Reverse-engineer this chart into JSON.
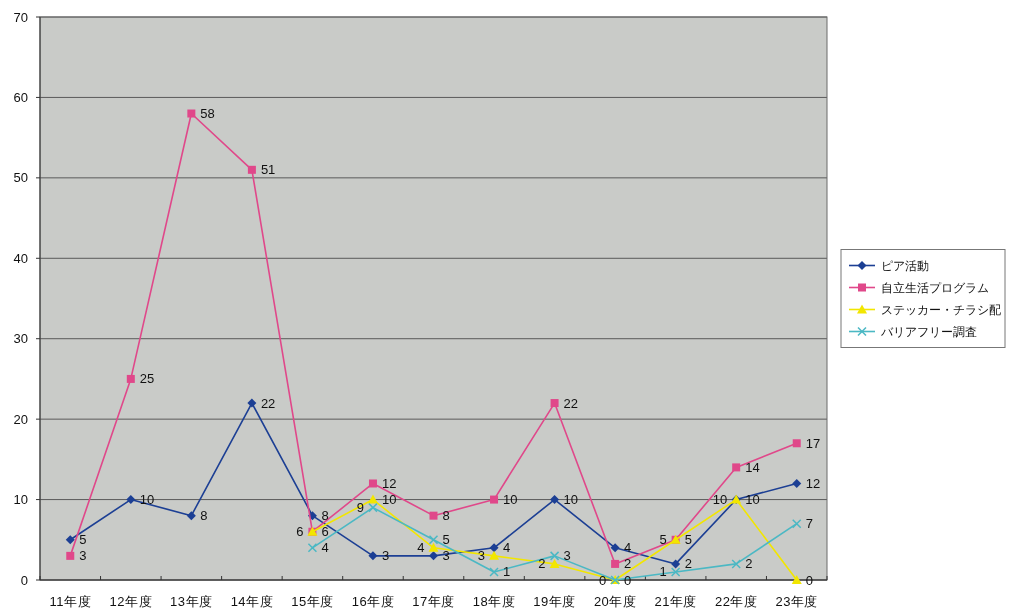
{
  "chart_data": {
    "type": "line",
    "categories": [
      "11年度",
      "12年度",
      "13年度",
      "14年度",
      "15年度",
      "16年度",
      "17年度",
      "18年度",
      "19年度",
      "20年度",
      "21年度",
      "22年度",
      "23年度"
    ],
    "series": [
      {
        "name": "ピア活動",
        "color": "#1c3f94",
        "marker": "diamond",
        "values": [
          5,
          10,
          8,
          22,
          8,
          3,
          3,
          4,
          10,
          4,
          2,
          10,
          12
        ]
      },
      {
        "name": "自立生活プログラム",
        "color": "#e0488a",
        "marker": "square",
        "values": [
          3,
          25,
          58,
          51,
          6,
          12,
          8,
          10,
          22,
          2,
          5,
          14,
          17
        ]
      },
      {
        "name": "ステッカー・チラシ配",
        "color": "#f2e600",
        "marker": "triangle",
        "values": [
          null,
          null,
          null,
          null,
          6,
          10,
          4,
          3,
          2,
          0,
          5,
          10,
          0
        ]
      },
      {
        "name": "バリアフリー調査",
        "color": "#4bb8c4",
        "marker": "cross",
        "values": [
          null,
          null,
          null,
          null,
          4,
          9,
          5,
          1,
          3,
          0,
          1,
          2,
          7
        ]
      }
    ],
    "ylim": [
      0,
      70
    ],
    "yticks": [
      0,
      10,
      20,
      30,
      40,
      50,
      60,
      70
    ],
    "grid": "y",
    "legend": "right",
    "data_labels": true
  }
}
